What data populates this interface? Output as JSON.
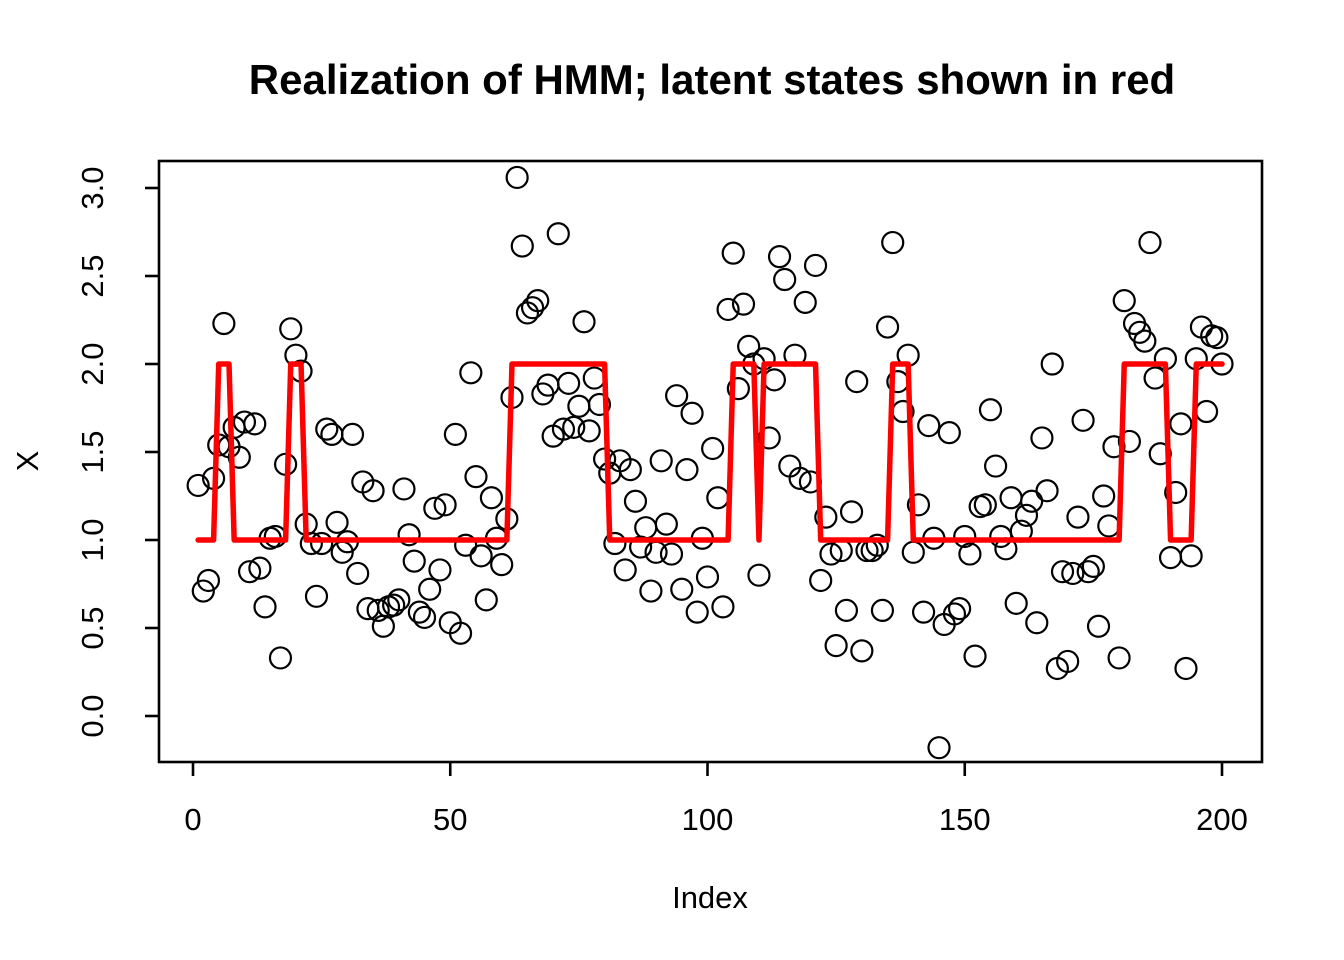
{
  "title": "Realization of HMM; latent states shown in red",
  "x_axis": {
    "label": "Index",
    "tick_labels": [
      "0",
      "50",
      "100",
      "150",
      "200"
    ],
    "tick_values": [
      0,
      50,
      100,
      150,
      200
    ]
  },
  "y_axis": {
    "label": "X",
    "tick_labels": [
      "0.0",
      "0.5",
      "1.0",
      "1.5",
      "2.0",
      "2.5",
      "3.0"
    ],
    "tick_values": [
      0,
      0.5,
      1,
      1.5,
      2,
      2.5,
      3
    ]
  },
  "colors": {
    "latent_line": "#FF0000",
    "point_stroke": "#000000",
    "frame": "#000000",
    "background": "#FFFFFF"
  },
  "chart_data": {
    "type": "scatter",
    "title": "Realization of HMM; latent states shown in red",
    "xlabel": "Index",
    "ylabel": "X",
    "x_start": 1,
    "n": 200,
    "xlim": [
      -6.6,
      207.8
    ],
    "ylim": [
      -0.26,
      3.15
    ],
    "grid": false,
    "legend_position": "none",
    "point_style": "open-circle",
    "series_note": "observations drawn as open circles; latent_states (1 or 2) drawn as red connected line",
    "observations": [
      1.31,
      0.71,
      0.77,
      1.35,
      1.54,
      2.23,
      1.53,
      1.64,
      1.47,
      1.67,
      0.82,
      1.66,
      0.84,
      0.62,
      1.01,
      1.02,
      0.33,
      1.43,
      2.2,
      2.05,
      1.96,
      1.09,
      0.98,
      0.68,
      0.98,
      1.63,
      1.6,
      1.1,
      0.93,
      0.99,
      1.6,
      0.81,
      1.33,
      0.61,
      1.28,
      0.6,
      0.51,
      0.62,
      0.63,
      0.66,
      1.29,
      1.03,
      0.88,
      0.59,
      0.56,
      0.72,
      1.18,
      0.83,
      1.2,
      0.53,
      1.6,
      0.47,
      0.97,
      1.95,
      1.36,
      0.91,
      0.66,
      1.24,
      1.01,
      0.86,
      1.12,
      1.81,
      3.06,
      2.67,
      2.29,
      2.32,
      2.36,
      1.83,
      1.88,
      1.59,
      2.74,
      1.63,
      1.89,
      1.64,
      1.76,
      2.24,
      1.62,
      1.92,
      1.77,
      1.46,
      1.38,
      0.98,
      1.45,
      0.83,
      1.4,
      1.22,
      0.96,
      1.07,
      0.71,
      0.93,
      1.45,
      1.09,
      0.92,
      1.82,
      0.72,
      1.4,
      1.72,
      0.59,
      1.01,
      0.79,
      1.52,
      1.24,
      0.62,
      2.31,
      2.63,
      1.86,
      2.34,
      2.1,
      2.0,
      0.8,
      2.03,
      1.58,
      1.91,
      2.61,
      2.48,
      1.42,
      2.05,
      1.35,
      2.35,
      1.33,
      2.56,
      0.77,
      1.13,
      0.92,
      0.4,
      0.94,
      0.6,
      1.16,
      1.9,
      0.37,
      0.94,
      0.94,
      0.97,
      0.6,
      2.21,
      2.69,
      1.9,
      1.73,
      2.05,
      0.93,
      1.2,
      0.59,
      1.65,
      1.01,
      -0.18,
      0.52,
      1.61,
      0.58,
      0.61,
      1.02,
      0.92,
      0.34,
      1.19,
      1.2,
      1.74,
      1.42,
      1.02,
      0.95,
      1.24,
      0.64,
      1.05,
      1.14,
      1.22,
      0.53,
      1.58,
      1.28,
      2.0,
      0.27,
      0.82,
      0.31,
      0.81,
      1.13,
      1.68,
      0.82,
      0.85,
      0.51,
      1.25,
      1.08,
      1.53,
      0.33,
      2.36,
      1.56,
      2.23,
      2.18,
      2.13,
      2.69,
      1.92,
      1.49,
      2.03,
      0.9,
      1.27,
      1.66,
      0.27,
      0.91,
      2.03,
      2.21,
      1.73,
      2.16,
      2.15,
      2.0
    ],
    "latent_states": [
      1,
      1,
      1,
      1,
      2,
      2,
      2,
      1,
      1,
      1,
      1,
      1,
      1,
      1,
      1,
      1,
      1,
      1,
      2,
      2,
      2,
      1,
      1,
      1,
      1,
      1,
      1,
      1,
      1,
      1,
      1,
      1,
      1,
      1,
      1,
      1,
      1,
      1,
      1,
      1,
      1,
      1,
      1,
      1,
      1,
      1,
      1,
      1,
      1,
      1,
      1,
      1,
      1,
      1,
      1,
      1,
      1,
      1,
      1,
      1,
      1,
      2,
      2,
      2,
      2,
      2,
      2,
      2,
      2,
      2,
      2,
      2,
      2,
      2,
      2,
      2,
      2,
      2,
      2,
      2,
      1,
      1,
      1,
      1,
      1,
      1,
      1,
      1,
      1,
      1,
      1,
      1,
      1,
      1,
      1,
      1,
      1,
      1,
      1,
      1,
      1,
      1,
      1,
      1,
      2,
      2,
      2,
      2,
      2,
      1,
      2,
      2,
      2,
      2,
      2,
      2,
      2,
      2,
      2,
      2,
      2,
      1,
      1,
      1,
      1,
      1,
      1,
      1,
      1,
      1,
      1,
      1,
      1,
      1,
      1,
      2,
      2,
      2,
      2,
      1,
      1,
      1,
      1,
      1,
      1,
      1,
      1,
      1,
      1,
      1,
      1,
      1,
      1,
      1,
      1,
      1,
      1,
      1,
      1,
      1,
      1,
      1,
      1,
      1,
      1,
      1,
      1,
      1,
      1,
      1,
      1,
      1,
      1,
      1,
      1,
      1,
      1,
      1,
      1,
      1,
      2,
      2,
      2,
      2,
      2,
      2,
      2,
      2,
      2,
      1,
      1,
      1,
      1,
      1,
      2,
      2,
      2,
      2,
      2,
      2
    ]
  }
}
